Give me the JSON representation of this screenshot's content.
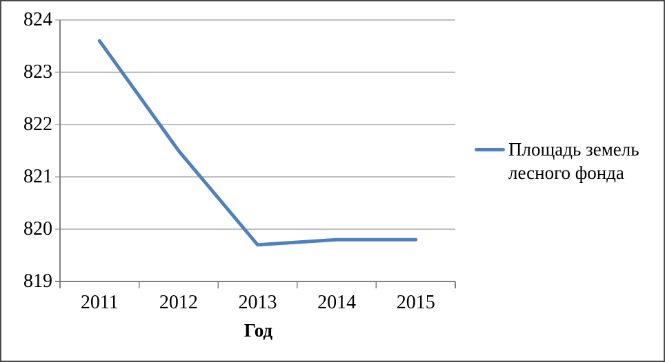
{
  "chart_data": {
    "type": "line",
    "title": "",
    "xlabel": "Год",
    "ylabel": "",
    "categories": [
      "2011",
      "2012",
      "2013",
      "2014",
      "2015"
    ],
    "series": [
      {
        "name": "Площадь земель лесного фонда",
        "values": [
          823.6,
          821.5,
          819.7,
          819.8,
          819.8
        ],
        "color": "#4F81BD"
      }
    ],
    "ylim": [
      819,
      824
    ],
    "ytick_step": 1,
    "yticks": [
      819,
      820,
      821,
      822,
      823,
      824
    ],
    "grid": "horizontal",
    "legend_position": "right"
  },
  "colors": {
    "line": "#4F81BD",
    "grid": "#7f7f7f",
    "axis": "#7f7f7f",
    "text": "#000000",
    "frame_border": "#4a4a4a"
  }
}
